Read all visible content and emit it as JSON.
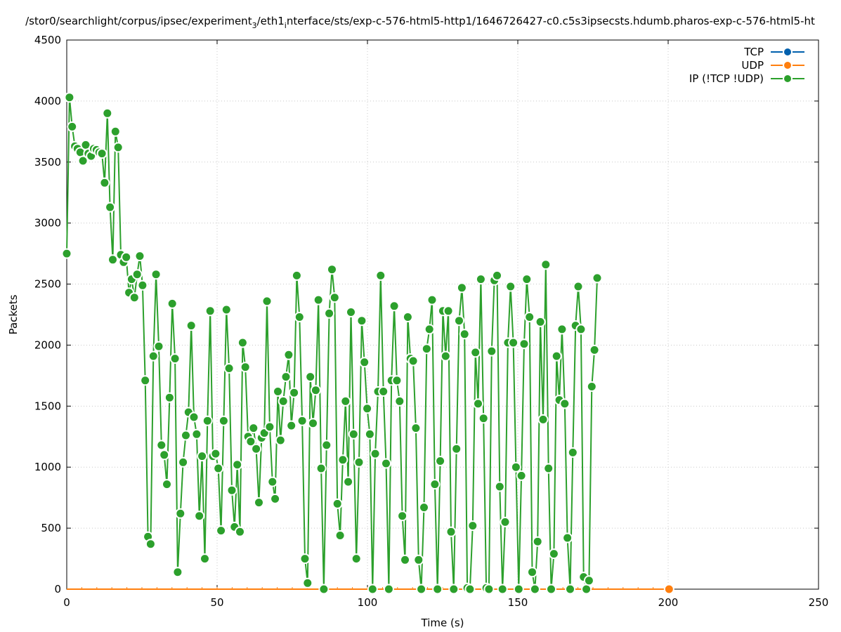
{
  "chart_data": {
    "type": "line",
    "title": "/stor0/searchlight/corpus/ipsec/experiment_3/eth1_interface/sts/exp-c-576-html5-http1/1646726427-c0.c5s3ipsecsts.hdumb.pharos-exp-c-576-html5-ht",
    "title_parts": {
      "a": "/stor0/searchlight/corpus/ipsec/experiment",
      "a_sub": "3",
      "b": "/eth1",
      "b_sub": "i",
      "c": "nterface/sts/exp-c-576-html5-http1/1646726427-c0.c5s3ipsecsts.hdumb.pharos-exp-c-576-html5-ht"
    },
    "xlabel": "Time (s)",
    "ylabel": "Packets",
    "xlim": [
      0,
      250
    ],
    "ylim": [
      0,
      4500
    ],
    "xticks": [
      "0",
      "50",
      "100",
      "150",
      "200",
      "250"
    ],
    "yticks": [
      "0",
      "500",
      "1000",
      "1500",
      "2000",
      "2500",
      "3000",
      "3500",
      "4000",
      "4500"
    ],
    "grid": true,
    "legend_position": "top-right",
    "series": [
      {
        "name": "TCP",
        "color": "#0060ad",
        "x": [
          0,
          2,
          4,
          6,
          8,
          10,
          12,
          14,
          16,
          18,
          20,
          22,
          24,
          26,
          28,
          30,
          32,
          34,
          36,
          38,
          40,
          42,
          44,
          46,
          48,
          50,
          52,
          54,
          56,
          58,
          60,
          62,
          64,
          66,
          68,
          70,
          72,
          74,
          76,
          78,
          80,
          82,
          84,
          86,
          88,
          90,
          92,
          94,
          96,
          98,
          100,
          102,
          104,
          106,
          108,
          110,
          112,
          114,
          116,
          118,
          120,
          122,
          124,
          126,
          128,
          130,
          132,
          134,
          136,
          138,
          140,
          142,
          144,
          146,
          148,
          150,
          152,
          154,
          156,
          158,
          160,
          162,
          164,
          166,
          168,
          170,
          172,
          174,
          176,
          178,
          180,
          182,
          184,
          186,
          188,
          190,
          192,
          194,
          196,
          198,
          200
        ],
        "values": [
          0,
          0,
          0,
          0,
          0,
          0,
          0,
          0,
          0,
          0,
          0,
          0,
          0,
          0,
          0,
          0,
          0,
          0,
          0,
          0,
          0,
          0,
          0,
          0,
          0,
          0,
          0,
          0,
          0,
          0,
          0,
          0,
          0,
          0,
          0,
          0,
          0,
          0,
          0,
          0,
          0,
          0,
          0,
          0,
          0,
          0,
          0,
          0,
          0,
          0,
          0,
          0,
          0,
          0,
          0,
          0,
          0,
          0,
          0,
          0,
          0,
          0,
          0,
          0,
          0,
          0,
          0,
          0,
          0,
          0,
          0,
          0,
          0,
          0,
          0,
          0,
          0,
          0,
          0,
          0,
          0,
          0,
          0,
          0,
          0,
          0,
          0,
          0,
          0,
          0,
          0,
          0,
          0,
          0,
          0,
          0,
          0,
          0,
          0,
          0,
          0
        ],
        "show_markers": false
      },
      {
        "name": "UDP",
        "color": "#ff7f0e",
        "x": [
          0,
          2,
          4,
          6,
          8,
          10,
          12,
          14,
          16,
          18,
          20,
          22,
          24,
          26,
          28,
          30,
          32,
          34,
          36,
          38,
          40,
          42,
          44,
          46,
          48,
          50,
          52,
          54,
          56,
          58,
          60,
          62,
          64,
          66,
          68,
          70,
          72,
          74,
          76,
          78,
          80,
          82,
          84,
          86,
          88,
          90,
          92,
          94,
          96,
          98,
          100,
          102,
          104,
          106,
          108,
          110,
          112,
          114,
          116,
          118,
          120,
          122,
          124,
          126,
          128,
          130,
          132,
          134,
          136,
          138,
          140,
          142,
          144,
          146,
          148,
          150,
          152,
          154,
          156,
          158,
          160,
          162,
          164,
          166,
          168,
          170,
          172,
          174,
          176,
          178,
          180,
          182,
          184,
          186,
          188,
          190,
          192,
          194,
          196,
          198,
          200
        ],
        "values": [
          0,
          0,
          0,
          0,
          0,
          0,
          0,
          0,
          0,
          0,
          0,
          0,
          0,
          0,
          0,
          0,
          0,
          0,
          0,
          0,
          0,
          0,
          0,
          0,
          0,
          0,
          0,
          0,
          0,
          0,
          0,
          0,
          0,
          0,
          0,
          0,
          0,
          0,
          0,
          0,
          0,
          0,
          0,
          0,
          0,
          0,
          0,
          0,
          0,
          0,
          0,
          0,
          0,
          0,
          0,
          0,
          0,
          0,
          0,
          0,
          0,
          0,
          0,
          0,
          0,
          0,
          0,
          0,
          0,
          0,
          0,
          0,
          0,
          0,
          0,
          0,
          0,
          0,
          0,
          0,
          0,
          0,
          0,
          0,
          0,
          0,
          0,
          0,
          0,
          0,
          0,
          0,
          0,
          0,
          0,
          0,
          0,
          0,
          0,
          0,
          0
        ],
        "show_markers": false,
        "end_marker": [
          200.3,
          0
        ]
      },
      {
        "name": "IP (!TCP  !UDP)",
        "color": "#2ca02c",
        "points": [
          [
            0,
            2750
          ],
          [
            0.9,
            4030
          ],
          [
            1.8,
            3790
          ],
          [
            2.7,
            3630
          ],
          [
            3.6,
            3610
          ],
          [
            4.5,
            3580
          ],
          [
            5.4,
            3510
          ],
          [
            6.3,
            3640
          ],
          [
            7.2,
            3570
          ],
          [
            8.1,
            3550
          ],
          [
            9,
            3610
          ],
          [
            9.9,
            3600
          ],
          [
            10.8,
            3580
          ],
          [
            11.7,
            3570
          ],
          [
            12.6,
            3330
          ],
          [
            13.5,
            3900
          ],
          [
            14.4,
            3130
          ],
          [
            15.3,
            2700
          ],
          [
            16.2,
            3750
          ],
          [
            17.1,
            3620
          ],
          [
            18,
            2740
          ],
          [
            18.9,
            2680
          ],
          [
            19.8,
            2720
          ],
          [
            20.7,
            2430
          ],
          [
            21.6,
            2540
          ],
          [
            22.5,
            2390
          ],
          [
            23.4,
            2580
          ],
          [
            24.3,
            2730
          ],
          [
            25.2,
            2490
          ],
          [
            26.1,
            1710
          ],
          [
            27,
            430
          ],
          [
            27.9,
            370
          ],
          [
            28.8,
            1910
          ],
          [
            29.7,
            2580
          ],
          [
            30.6,
            1990
          ],
          [
            31.5,
            1180
          ],
          [
            32.4,
            1100
          ],
          [
            33.3,
            860
          ],
          [
            34.2,
            1570
          ],
          [
            35.1,
            2340
          ],
          [
            36,
            1890
          ],
          [
            36.9,
            140
          ],
          [
            37.8,
            620
          ],
          [
            38.7,
            1040
          ],
          [
            39.6,
            1260
          ],
          [
            40.5,
            1450
          ],
          [
            41.4,
            2160
          ],
          [
            42.3,
            1410
          ],
          [
            43.2,
            1270
          ],
          [
            44.1,
            600
          ],
          [
            45,
            1090
          ],
          [
            45.9,
            250
          ],
          [
            46.8,
            1380
          ],
          [
            47.7,
            2280
          ],
          [
            48.6,
            1090
          ],
          [
            49.5,
            1110
          ],
          [
            50.4,
            990
          ],
          [
            51.3,
            480
          ],
          [
            52.2,
            1380
          ],
          [
            53.1,
            2290
          ],
          [
            54,
            1810
          ],
          [
            54.9,
            810
          ],
          [
            55.8,
            510
          ],
          [
            56.7,
            1020
          ],
          [
            57.6,
            470
          ],
          [
            58.5,
            2020
          ],
          [
            59.4,
            1820
          ],
          [
            60.3,
            1250
          ],
          [
            61.2,
            1210
          ],
          [
            62.1,
            1320
          ],
          [
            63,
            1150
          ],
          [
            63.9,
            710
          ],
          [
            64.8,
            1240
          ],
          [
            65.7,
            1280
          ],
          [
            66.6,
            2360
          ],
          [
            67.5,
            1330
          ],
          [
            68.4,
            880
          ],
          [
            69.3,
            740
          ],
          [
            70.2,
            1620
          ],
          [
            71.1,
            1220
          ],
          [
            72,
            1540
          ],
          [
            72.9,
            1740
          ],
          [
            73.8,
            1920
          ],
          [
            74.7,
            1340
          ],
          [
            75.6,
            1610
          ],
          [
            76.5,
            2570
          ],
          [
            77.4,
            2230
          ],
          [
            78.3,
            1380
          ],
          [
            79.2,
            250
          ],
          [
            80.1,
            50
          ],
          [
            81,
            1740
          ],
          [
            81.9,
            1360
          ],
          [
            82.8,
            1630
          ],
          [
            83.7,
            2370
          ],
          [
            84.6,
            990
          ],
          [
            85.5,
            0
          ],
          [
            86.4,
            1180
          ],
          [
            87.3,
            2260
          ],
          [
            88.2,
            2620
          ],
          [
            89.1,
            2390
          ],
          [
            90,
            700
          ],
          [
            90.9,
            440
          ],
          [
            91.8,
            1060
          ],
          [
            92.7,
            1540
          ],
          [
            93.6,
            880
          ],
          [
            94.5,
            2270
          ],
          [
            95.4,
            1270
          ],
          [
            96.3,
            250
          ],
          [
            97.2,
            1040
          ],
          [
            98.1,
            2200
          ],
          [
            99,
            1860
          ],
          [
            99.9,
            1480
          ],
          [
            100.8,
            1270
          ],
          [
            101.7,
            0
          ],
          [
            102.6,
            1110
          ],
          [
            103.5,
            1620
          ],
          [
            104.4,
            2570
          ],
          [
            105.3,
            1620
          ],
          [
            106.2,
            1030
          ],
          [
            107.1,
            0
          ],
          [
            108,
            1710
          ],
          [
            108.9,
            2320
          ],
          [
            109.8,
            1710
          ],
          [
            110.7,
            1540
          ],
          [
            111.6,
            600
          ],
          [
            112.5,
            240
          ],
          [
            113.4,
            2230
          ],
          [
            114.3,
            1890
          ],
          [
            115.2,
            1870
          ],
          [
            116.1,
            1320
          ],
          [
            117,
            240
          ],
          [
            117.9,
            0
          ],
          [
            118.8,
            670
          ],
          [
            119.7,
            1970
          ],
          [
            120.6,
            2130
          ],
          [
            121.5,
            2370
          ],
          [
            122.4,
            860
          ],
          [
            123.3,
            0
          ],
          [
            124.2,
            1050
          ],
          [
            125.1,
            2280
          ],
          [
            126,
            1910
          ],
          [
            126.9,
            2280
          ],
          [
            127.8,
            470
          ],
          [
            128.7,
            0
          ],
          [
            129.6,
            1150
          ],
          [
            130.5,
            2200
          ],
          [
            131.4,
            2470
          ],
          [
            132.3,
            2090
          ],
          [
            133.2,
            10
          ],
          [
            134.1,
            0
          ],
          [
            135,
            520
          ],
          [
            135.9,
            1940
          ],
          [
            136.8,
            1520
          ],
          [
            137.7,
            2540
          ],
          [
            138.6,
            1400
          ],
          [
            139.5,
            10
          ],
          [
            140.4,
            0
          ],
          [
            141.3,
            1950
          ],
          [
            142.2,
            2530
          ],
          [
            143.1,
            2570
          ],
          [
            144,
            840
          ],
          [
            144.9,
            0
          ],
          [
            145.8,
            550
          ],
          [
            146.7,
            2020
          ],
          [
            147.6,
            2480
          ],
          [
            148.5,
            2020
          ],
          [
            149.4,
            1000
          ],
          [
            150.3,
            0
          ],
          [
            151.2,
            930
          ],
          [
            152.1,
            2010
          ],
          [
            153,
            2540
          ],
          [
            153.9,
            2230
          ],
          [
            154.8,
            140
          ],
          [
            155.7,
            0
          ],
          [
            156.6,
            390
          ],
          [
            157.5,
            2190
          ],
          [
            158.4,
            1390
          ],
          [
            159.3,
            2660
          ],
          [
            160.2,
            990
          ],
          [
            161.1,
            0
          ],
          [
            162,
            290
          ],
          [
            162.9,
            1910
          ],
          [
            163.8,
            1550
          ],
          [
            164.7,
            2130
          ],
          [
            165.6,
            1520
          ],
          [
            166.5,
            420
          ],
          [
            167.4,
            0
          ],
          [
            168.3,
            1120
          ],
          [
            169.2,
            2160
          ],
          [
            170.1,
            2480
          ],
          [
            171,
            2130
          ],
          [
            171.9,
            100
          ],
          [
            172.8,
            0
          ],
          [
            173.7,
            70
          ],
          [
            174.6,
            1660
          ],
          [
            175.5,
            1960
          ],
          [
            176.4,
            2550
          ]
        ],
        "show_markers": true
      }
    ]
  }
}
